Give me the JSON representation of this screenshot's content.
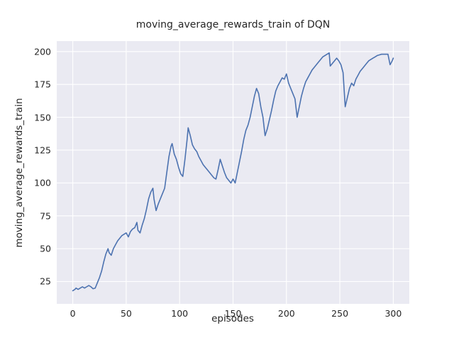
{
  "figure": {
    "title": "moving_average_rewards_train of DQN",
    "xlabel": "episodes",
    "ylabel": "moving_average_rewards_train"
  },
  "chart_data": {
    "type": "line",
    "title": "moving_average_rewards_train of DQN",
    "xlabel": "episodes",
    "ylabel": "moving_average_rewards_train",
    "xlim": [
      -15,
      315
    ],
    "ylim": [
      8,
      208
    ],
    "xticks": [
      0,
      50,
      100,
      150,
      200,
      250,
      300
    ],
    "yticks": [
      25,
      50,
      75,
      100,
      125,
      150,
      175,
      200
    ],
    "grid": true,
    "legend": false,
    "colors": {
      "line": "#4c72b0",
      "axes_background": "#eaeaf2",
      "grid": "#ffffff",
      "text": "#262626",
      "figure_background": "#ffffff"
    },
    "series": [
      {
        "name": "moving_average_rewards_train",
        "x": [
          0,
          2,
          3,
          5,
          7,
          9,
          11,
          13,
          15,
          17,
          19,
          21,
          23,
          25,
          27,
          29,
          31,
          33,
          34,
          36,
          38,
          40,
          42,
          44,
          46,
          48,
          50,
          52,
          54,
          56,
          58,
          60,
          61,
          63,
          65,
          67,
          69,
          71,
          73,
          75,
          76,
          78,
          80,
          82,
          84,
          86,
          88,
          90,
          92,
          93,
          95,
          97,
          99,
          101,
          103,
          105,
          107,
          108,
          110,
          112,
          114,
          116,
          118,
          120,
          122,
          124,
          126,
          128,
          130,
          132,
          134,
          136,
          138,
          140,
          142,
          144,
          146,
          148,
          150,
          152,
          154,
          156,
          158,
          160,
          162,
          164,
          166,
          168,
          170,
          172,
          174,
          176,
          178,
          180,
          182,
          184,
          186,
          188,
          190,
          192,
          194,
          196,
          198,
          200,
          202,
          204,
          206,
          208,
          210,
          212,
          214,
          216,
          218,
          220,
          222,
          224,
          226,
          228,
          230,
          232,
          234,
          236,
          238,
          240,
          241,
          243,
          245,
          247,
          249,
          251,
          253,
          255,
          257,
          259,
          261,
          263,
          265,
          267,
          269,
          271,
          273,
          275,
          277,
          279,
          281,
          283,
          285,
          287,
          289,
          291,
          293,
          295,
          297,
          299,
          300
        ],
        "y": [
          18,
          19,
          20,
          19,
          20,
          21,
          20,
          21,
          22,
          21,
          19.5,
          20,
          24,
          28,
          33,
          40,
          46,
          50,
          47,
          45,
          50,
          53,
          56,
          58,
          60,
          61,
          62,
          59,
          63,
          65,
          66,
          70,
          64,
          62,
          68,
          73,
          80,
          88,
          93,
          96,
          88,
          79,
          84,
          88,
          92,
          96,
          108,
          120,
          128,
          130,
          122,
          118,
          112,
          107,
          105,
          118,
          133,
          142,
          136,
          129,
          126,
          124,
          120,
          117,
          114,
          112,
          110,
          108,
          106,
          104,
          103,
          110,
          118,
          113,
          108,
          104,
          102,
          100,
          103,
          100,
          108,
          116,
          124,
          133,
          140,
          144,
          150,
          158,
          166,
          172,
          168,
          158,
          150,
          136,
          141,
          148,
          155,
          163,
          170,
          174,
          177,
          180,
          179,
          183,
          176,
          172,
          168,
          164,
          150,
          158,
          166,
          172,
          177,
          180,
          183,
          186,
          188,
          190,
          192,
          194,
          196,
          197,
          198,
          199,
          189,
          191,
          193,
          195,
          193,
          190,
          184,
          158,
          165,
          172,
          176,
          174,
          179,
          182,
          185,
          187,
          189,
          191,
          193,
          194,
          195,
          196,
          197,
          197.5,
          198,
          198,
          198,
          198,
          190,
          193,
          195
        ]
      }
    ]
  }
}
